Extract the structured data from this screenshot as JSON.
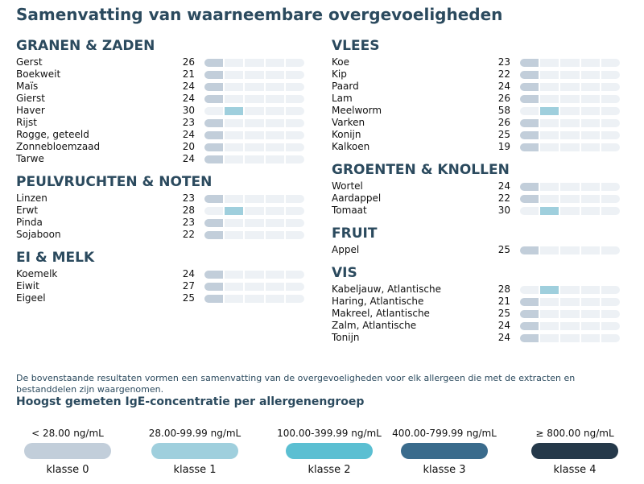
{
  "title": "Samenvatting van waarneembare overgevoeligheden",
  "colors": {
    "heading": "#2b4a5e",
    "track": "#edf1f5",
    "class0": "#c2ceda",
    "class1": "#9fcfdd",
    "class2": "#5bbfd2",
    "class3": "#3a6b8c",
    "class4": "#25394a"
  },
  "bar_levels": 5,
  "columns": [
    {
      "groups": [
        {
          "title": "GRANEN & ZADEN",
          "items": [
            {
              "name": "Gerst",
              "value": 26,
              "klasse": 0
            },
            {
              "name": "Boekweit",
              "value": 21,
              "klasse": 0
            },
            {
              "name": "Maïs",
              "value": 24,
              "klasse": 0
            },
            {
              "name": "Gierst",
              "value": 24,
              "klasse": 0
            },
            {
              "name": "Haver",
              "value": 30,
              "klasse": 1
            },
            {
              "name": "Rijst",
              "value": 23,
              "klasse": 0
            },
            {
              "name": "Rogge, geteeld",
              "value": 24,
              "klasse": 0
            },
            {
              "name": "Zonnebloemzaad",
              "value": 20,
              "klasse": 0
            },
            {
              "name": "Tarwe",
              "value": 24,
              "klasse": 0
            }
          ]
        },
        {
          "title": "PEULVRUCHTEN & NOTEN",
          "items": [
            {
              "name": "Linzen",
              "value": 23,
              "klasse": 0
            },
            {
              "name": "Erwt",
              "value": 28,
              "klasse": 1
            },
            {
              "name": "Pinda",
              "value": 23,
              "klasse": 0
            },
            {
              "name": "Sojaboon",
              "value": 22,
              "klasse": 0
            }
          ]
        },
        {
          "title": "EI & MELK",
          "items": [
            {
              "name": "Koemelk",
              "value": 24,
              "klasse": 0
            },
            {
              "name": "Eiwit",
              "value": 27,
              "klasse": 0
            },
            {
              "name": "Eigeel",
              "value": 25,
              "klasse": 0
            }
          ]
        }
      ]
    },
    {
      "groups": [
        {
          "title": "VLEES",
          "items": [
            {
              "name": "Koe",
              "value": 23,
              "klasse": 0
            },
            {
              "name": "Kip",
              "value": 22,
              "klasse": 0
            },
            {
              "name": "Paard",
              "value": 24,
              "klasse": 0
            },
            {
              "name": "Lam",
              "value": 26,
              "klasse": 0
            },
            {
              "name": "Meelworm",
              "value": 58,
              "klasse": 1
            },
            {
              "name": "Varken",
              "value": 26,
              "klasse": 0
            },
            {
              "name": "Konijn",
              "value": 25,
              "klasse": 0
            },
            {
              "name": "Kalkoen",
              "value": 19,
              "klasse": 0
            }
          ]
        },
        {
          "title": "GROENTEN & KNOLLEN",
          "items": [
            {
              "name": "Wortel",
              "value": 24,
              "klasse": 0
            },
            {
              "name": "Aardappel",
              "value": 22,
              "klasse": 0
            },
            {
              "name": "Tomaat",
              "value": 30,
              "klasse": 1
            }
          ]
        },
        {
          "title": "FRUIT",
          "items": [
            {
              "name": "Appel",
              "value": 25,
              "klasse": 0
            }
          ]
        },
        {
          "title": "VIS",
          "items": [
            {
              "name": "Kabeljauw, Atlantische",
              "value": 28,
              "klasse": 1
            },
            {
              "name": "Haring, Atlantische",
              "value": 21,
              "klasse": 0
            },
            {
              "name": "Makreel, Atlantische",
              "value": 25,
              "klasse": 0
            },
            {
              "name": "Zalm, Atlantische",
              "value": 24,
              "klasse": 0
            },
            {
              "name": "Tonijn",
              "value": 24,
              "klasse": 0
            }
          ]
        }
      ]
    }
  ],
  "note": "De bovenstaande resultaten vormen een samenvatting van de overgevoeligheden voor elk allergeen die met de extracten en bestanddelen zijn waargenomen.",
  "legend": {
    "title": "Hoogst gemeten IgE-concentratie per allergenengroep",
    "items": [
      {
        "range": "< 28.00 ng/mL",
        "label": "klasse 0",
        "color": "#c2ceda"
      },
      {
        "range": "28.00-99.99 ng/mL",
        "label": "klasse 1",
        "color": "#9fcfdd"
      },
      {
        "range": "100.00-399.99 ng/mL",
        "label": "klasse 2",
        "color": "#5bbfd2"
      },
      {
        "range": "400.00-799.99 ng/mL",
        "label": "klasse 3",
        "color": "#3a6b8c"
      },
      {
        "range": "≥ 800.00 ng/mL",
        "label": "klasse 4",
        "color": "#25394a"
      }
    ]
  }
}
